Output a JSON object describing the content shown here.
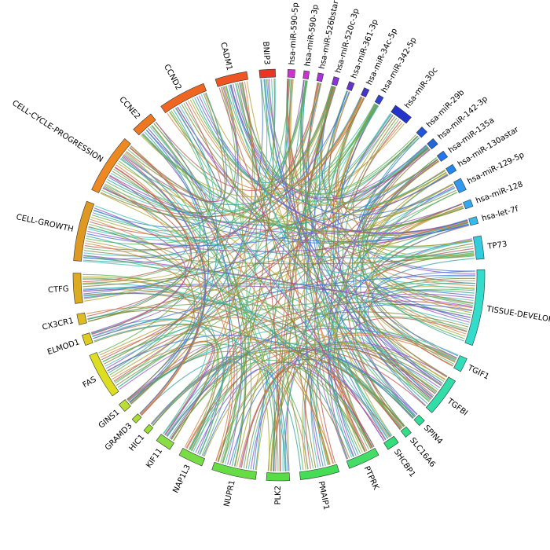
{
  "segments": [
    {
      "label": "hsa-miR-590-5p",
      "color": "#cc33cc",
      "start": 2.5,
      "end": 4.5
    },
    {
      "label": "hsa-miR-590-3p",
      "color": "#cc33cc",
      "start": 7.0,
      "end": 8.5
    },
    {
      "label": "hsa-miR-526bstar",
      "color": "#aa33dd",
      "start": 11.0,
      "end": 12.5
    },
    {
      "label": "hsa-miR-520c-3p",
      "color": "#8833dd",
      "start": 15.5,
      "end": 17.0
    },
    {
      "label": "hsa-miR-361-3p",
      "color": "#6633cc",
      "start": 20.0,
      "end": 21.5
    },
    {
      "label": "hsa-miR-34c-5p",
      "color": "#4433cc",
      "start": 24.5,
      "end": 26.0
    },
    {
      "label": "hsa-miR-342-5p",
      "color": "#3344cc",
      "start": 29.0,
      "end": 30.5
    },
    {
      "label": "hsa-miR-30c",
      "color": "#2233cc",
      "start": 34.5,
      "end": 40.0
    },
    {
      "label": "hsa-miR-29b",
      "color": "#2255dd",
      "start": 44.0,
      "end": 46.0
    },
    {
      "label": "hsa-miR-142-3p",
      "color": "#2266dd",
      "start": 48.5,
      "end": 50.5
    },
    {
      "label": "hsa-miR-135a",
      "color": "#2277ee",
      "start": 53.0,
      "end": 55.0
    },
    {
      "label": "hsa-miR-130astar",
      "color": "#2288ee",
      "start": 57.5,
      "end": 59.5
    },
    {
      "label": "hsa-miR-129-5p",
      "color": "#3399ee",
      "start": 62.0,
      "end": 65.5
    },
    {
      "label": "hsa-miR-128",
      "color": "#33aaee",
      "start": 68.5,
      "end": 70.5
    },
    {
      "label": "hsa-let-7f",
      "color": "#33bbee",
      "start": 73.5,
      "end": 75.5
    },
    {
      "label": "TP73",
      "color": "#33ccdd",
      "start": 79.0,
      "end": 85.5
    },
    {
      "label": "TISSUE-DEVELOP",
      "color": "#33ddcc",
      "start": 88.5,
      "end": 110.0
    },
    {
      "label": "TGIF1",
      "color": "#33ddbb",
      "start": 114.0,
      "end": 118.0
    },
    {
      "label": "TGFBI",
      "color": "#33ddaa",
      "start": 121.0,
      "end": 132.0
    },
    {
      "label": "SPIN4",
      "color": "#33dd99",
      "start": 135.0,
      "end": 137.0
    },
    {
      "label": "SLC16A6",
      "color": "#33dd88",
      "start": 140.0,
      "end": 142.0
    },
    {
      "label": "SHCBP1",
      "color": "#33dd77",
      "start": 144.5,
      "end": 148.0
    },
    {
      "label": "PTPRK",
      "color": "#44dd66",
      "start": 151.0,
      "end": 160.0
    },
    {
      "label": "PMAIP1",
      "color": "#44dd55",
      "start": 163.0,
      "end": 174.0
    },
    {
      "label": "PLK2",
      "color": "#55dd44",
      "start": 177.0,
      "end": 183.5
    },
    {
      "label": "NUPR1",
      "color": "#66dd44",
      "start": 186.5,
      "end": 199.0
    },
    {
      "label": "NAP1L3",
      "color": "#77dd44",
      "start": 202.0,
      "end": 209.0
    },
    {
      "label": "KIF11",
      "color": "#88dd44",
      "start": 212.0,
      "end": 216.5
    },
    {
      "label": "HIC1",
      "color": "#99dd33",
      "start": 219.5,
      "end": 221.0
    },
    {
      "label": "GRAMD3",
      "color": "#aadd33",
      "start": 224.0,
      "end": 225.5
    },
    {
      "label": "GINS1",
      "color": "#bbdd33",
      "start": 228.5,
      "end": 231.0
    },
    {
      "label": "FAS",
      "color": "#dddd22",
      "start": 234.0,
      "end": 247.0
    },
    {
      "label": "ELMOD1",
      "color": "#ddcc22",
      "start": 250.0,
      "end": 253.0
    },
    {
      "label": "CX3CR1",
      "color": "#ddbb22",
      "start": 256.0,
      "end": 259.0
    },
    {
      "label": "CTFG",
      "color": "#ddaa22",
      "start": 262.0,
      "end": 270.5
    },
    {
      "label": "CELL-GROWTH",
      "color": "#dd9922",
      "start": 274.0,
      "end": 291.0
    },
    {
      "label": "CELL-CYCLE-PROGRESSION",
      "color": "#ee8822",
      "start": 294.5,
      "end": 311.5
    },
    {
      "label": "CCNE2",
      "color": "#ee7722",
      "start": 315.0,
      "end": 321.5
    },
    {
      "label": "CCND2",
      "color": "#ee6622",
      "start": 325.0,
      "end": 338.5
    },
    {
      "label": "CADM1",
      "color": "#ee5522",
      "start": 342.0,
      "end": 351.0
    },
    {
      "label": "BNIP3",
      "color": "#ee3322",
      "start": 354.5,
      "end": 359.0
    }
  ],
  "ribbon_palette": [
    "#c05050",
    "#d08040",
    "#b0a030",
    "#50b050",
    "#30a0a0",
    "#4070d0",
    "#9050c0",
    "#40c0b0",
    "#808030",
    "#60b060"
  ]
}
